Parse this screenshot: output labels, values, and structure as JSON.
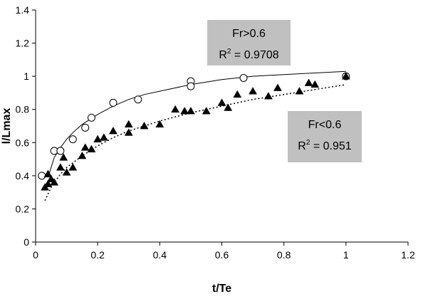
{
  "chart_data": {
    "type": "scatter",
    "xlabel": "t/Te",
    "ylabel": "l/Lmax",
    "xlim": [
      0,
      1.2
    ],
    "ylim": [
      0,
      1.4
    ],
    "x_ticks": [
      "0",
      "0.2",
      "0.4",
      "0.6",
      "0.8",
      "1",
      "1.2"
    ],
    "y_ticks": [
      "0",
      "0.2",
      "0.4",
      "0.6",
      "0.8",
      "1",
      "1.2",
      "1.4"
    ],
    "grid": false,
    "legend": "none",
    "series": [
      {
        "name": "Fr>0.6",
        "marker": "open-circle",
        "color": "#000000",
        "x": [
          0.02,
          0.06,
          0.08,
          0.12,
          0.16,
          0.18,
          0.25,
          0.33,
          0.5,
          0.5,
          0.67,
          1.0
        ],
        "y": [
          0.4,
          0.55,
          0.55,
          0.62,
          0.69,
          0.75,
          0.84,
          0.86,
          0.97,
          0.94,
          0.99,
          1.0
        ]
      },
      {
        "name": "Fr<0.6",
        "marker": "filled-triangle",
        "color": "#000000",
        "x": [
          0.03,
          0.04,
          0.04,
          0.05,
          0.06,
          0.08,
          0.09,
          0.1,
          0.12,
          0.15,
          0.16,
          0.18,
          0.2,
          0.22,
          0.25,
          0.3,
          0.3,
          0.35,
          0.4,
          0.45,
          0.48,
          0.5,
          0.55,
          0.6,
          0.62,
          0.65,
          0.7,
          0.75,
          0.78,
          0.85,
          0.88,
          0.9,
          1.0
        ],
        "y": [
          0.33,
          0.35,
          0.41,
          0.38,
          0.36,
          0.45,
          0.51,
          0.42,
          0.45,
          0.52,
          0.57,
          0.56,
          0.62,
          0.63,
          0.67,
          0.71,
          0.66,
          0.7,
          0.71,
          0.8,
          0.79,
          0.79,
          0.79,
          0.84,
          0.81,
          0.89,
          0.91,
          0.88,
          0.93,
          0.91,
          0.96,
          0.95,
          1.0
        ]
      }
    ],
    "trendlines": [
      {
        "series": "Fr>0.6",
        "style": "solid",
        "x": [
          0.04,
          0.06,
          0.08,
          0.1,
          0.12,
          0.15,
          0.2,
          0.25,
          0.3,
          0.35,
          0.4,
          0.5,
          0.6,
          0.7,
          0.8,
          0.9,
          1.0
        ],
        "y": [
          0.39,
          0.51,
          0.57,
          0.62,
          0.66,
          0.71,
          0.77,
          0.82,
          0.86,
          0.89,
          0.91,
          0.95,
          0.98,
          1.0,
          1.01,
          1.02,
          1.03
        ]
      },
      {
        "series": "Fr<0.6",
        "style": "dotted",
        "x": [
          0.03,
          0.05,
          0.08,
          0.1,
          0.15,
          0.2,
          0.25,
          0.3,
          0.4,
          0.5,
          0.6,
          0.7,
          0.8,
          0.9,
          1.0
        ],
        "y": [
          0.25,
          0.33,
          0.41,
          0.45,
          0.52,
          0.58,
          0.63,
          0.67,
          0.73,
          0.78,
          0.82,
          0.86,
          0.89,
          0.92,
          0.95
        ]
      }
    ],
    "annotations": [
      {
        "name": "Fr>0.6",
        "line1": "Fr>0.6",
        "r2_prefix": "R",
        "r2_sup": "2",
        "r2_value": " = 0.9708",
        "background": "#c0c0c0"
      },
      {
        "name": "Fr<0.6",
        "line1": "Fr<0.6",
        "r2_prefix": "R",
        "r2_sup": "2",
        "r2_value": " = 0.951",
        "background": "#c0c0c0"
      }
    ]
  }
}
